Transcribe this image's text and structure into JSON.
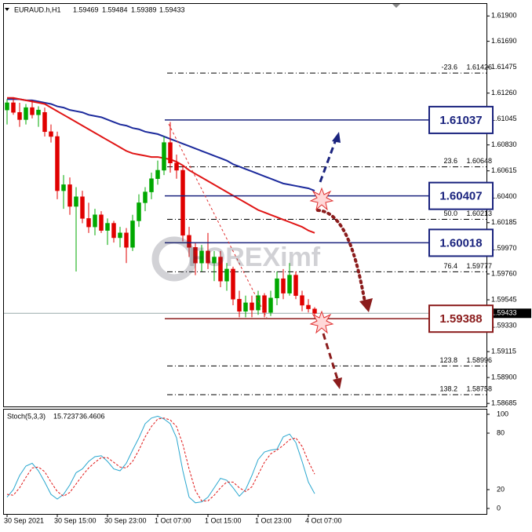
{
  "chart_data": {
    "type": "candlestick",
    "symbol": "EURAUD.h,H1",
    "watermark": "FOREXimf",
    "categories": [
      "30 Sep 2021",
      null,
      null,
      null,
      null,
      null,
      null,
      null,
      "30 Sep 15:00",
      null,
      null,
      null,
      null,
      null,
      null,
      null,
      "30 Sep 23:00",
      null,
      null,
      null,
      null,
      null,
      null,
      null,
      "1 Oct 07:00",
      null,
      null,
      null,
      null,
      null,
      null,
      null,
      "1 Oct 15:00",
      null,
      null,
      null,
      null,
      null,
      null,
      null,
      "1 Oct 23:00",
      null,
      null,
      null,
      null,
      null,
      null,
      null,
      "4 Oct 07:00",
      null
    ],
    "up_color": "#00a800",
    "down_color": "#e00000",
    "candles": [
      [
        1.6112,
        1.6121,
        1.61,
        1.6118
      ],
      [
        1.6118,
        1.6122,
        1.6108,
        1.611
      ],
      [
        1.611,
        1.6118,
        1.6098,
        1.6104
      ],
      [
        1.6104,
        1.6117,
        1.61,
        1.6114
      ],
      [
        1.6114,
        1.612,
        1.6105,
        1.6108
      ],
      [
        1.6108,
        1.6115,
        1.6098,
        1.6112
      ],
      [
        1.611,
        1.6114,
        1.609,
        1.6094
      ],
      [
        1.6094,
        1.61,
        1.6085,
        1.609
      ],
      [
        1.609,
        1.6094,
        1.6038,
        1.6045
      ],
      [
        1.6045,
        1.6058,
        1.603,
        1.605
      ],
      [
        1.605,
        1.6056,
        1.6025,
        1.6032
      ],
      [
        1.6032,
        1.6048,
        1.5978,
        1.604
      ],
      [
        1.604,
        1.6045,
        1.6018,
        1.6022
      ],
      [
        1.6022,
        1.6035,
        1.601,
        1.6015
      ],
      [
        1.6015,
        1.603,
        1.6008,
        1.6025
      ],
      [
        1.6025,
        1.6028,
        1.601,
        1.6012
      ],
      [
        1.6012,
        1.6022,
        1.6,
        1.6018
      ],
      [
        1.6018,
        1.602,
        1.6002,
        1.6006
      ],
      [
        1.6006,
        1.6015,
        1.5998,
        1.601
      ],
      [
        1.601,
        1.6014,
        1.5985,
        1.5998
      ],
      [
        1.5998,
        1.6025,
        1.5995,
        1.602
      ],
      [
        1.602,
        1.6042,
        1.6015,
        1.6035
      ],
      [
        1.6035,
        1.6048,
        1.6028,
        1.6044
      ],
      [
        1.6044,
        1.606,
        1.6038,
        1.6055
      ],
      [
        1.6055,
        1.607,
        1.605,
        1.6062
      ],
      [
        1.6062,
        1.609,
        1.6058,
        1.6085
      ],
      [
        1.6085,
        1.6102,
        1.606,
        1.6068
      ],
      [
        1.6068,
        1.6075,
        1.6055,
        1.6062
      ],
      [
        1.6062,
        1.6066,
        1.6003,
        1.6008
      ],
      [
        1.6008,
        1.6015,
        1.599,
        1.5998
      ],
      [
        1.5998,
        1.6002,
        1.5975,
        1.5985
      ],
      [
        1.5985,
        1.6,
        1.5978,
        1.5995
      ],
      [
        1.5995,
        1.601,
        1.598,
        1.5985
      ],
      [
        1.5985,
        1.5995,
        1.597,
        1.599
      ],
      [
        1.599,
        1.5995,
        1.5965,
        1.597
      ],
      [
        1.597,
        1.5985,
        1.5962,
        1.598
      ],
      [
        1.598,
        1.5982,
        1.595,
        1.5955
      ],
      [
        1.5955,
        1.5962,
        1.594,
        1.5945
      ],
      [
        1.5945,
        1.5958,
        1.594,
        1.5952
      ],
      [
        1.5952,
        1.5958,
        1.594,
        1.5946
      ],
      [
        1.5946,
        1.5962,
        1.5942,
        1.5958
      ],
      [
        1.5958,
        1.596,
        1.594,
        1.5944
      ],
      [
        1.5944,
        1.5962,
        1.5941,
        1.5956
      ],
      [
        1.5956,
        1.5978,
        1.595,
        1.5972
      ],
      [
        1.5972,
        1.598,
        1.5955,
        1.596
      ],
      [
        1.596,
        1.5985,
        1.5958,
        1.5975
      ],
      [
        1.5975,
        1.5978,
        1.5955,
        1.5958
      ],
      [
        1.5958,
        1.5962,
        1.5945,
        1.595
      ],
      [
        1.595,
        1.5955,
        1.5944,
        1.5947
      ],
      [
        1.59469,
        1.59484,
        1.59389,
        1.59433
      ]
    ],
    "ma": [
      {
        "color": "#1c2a9c",
        "values": [
          1.6121,
          1.6121,
          1.6121,
          1.612,
          1.612,
          1.6119,
          1.6118,
          1.6117,
          1.6115,
          1.6114,
          1.6112,
          1.6111,
          1.611,
          1.6108,
          1.6107,
          1.6106,
          1.6104,
          1.6102,
          1.61,
          1.6099,
          1.6097,
          1.6096,
          1.6094,
          1.6093,
          1.6092,
          1.609,
          1.6088,
          1.6086,
          1.6084,
          1.6082,
          1.608,
          1.6078,
          1.6076,
          1.6074,
          1.6072,
          1.607,
          1.6067,
          1.6065,
          1.6063,
          1.6061,
          1.6059,
          1.6057,
          1.6055,
          1.6053,
          1.6051,
          1.605,
          1.6049,
          1.6048,
          1.6047,
          1.6045
        ]
      },
      {
        "color": "#e01515",
        "values": [
          1.6122,
          1.6122,
          1.6121,
          1.612,
          1.6119,
          1.6118,
          1.6117,
          1.6114,
          1.6111,
          1.6108,
          1.6105,
          1.6102,
          1.6099,
          1.6096,
          1.6093,
          1.609,
          1.6087,
          1.6084,
          1.6081,
          1.6078,
          1.6076,
          1.6075,
          1.6074,
          1.6073,
          1.6073,
          1.6072,
          1.6071,
          1.6069,
          1.6066,
          1.6062,
          1.6059,
          1.6056,
          1.6053,
          1.605,
          1.6047,
          1.6044,
          1.6041,
          1.6038,
          1.6035,
          1.6032,
          1.6029,
          1.6027,
          1.6025,
          1.6023,
          1.6021,
          1.6019,
          1.6017,
          1.6015,
          1.6012,
          1.601
        ]
      }
    ],
    "ylim": [
      1.5866,
      1.62
    ],
    "yticks": [
      {
        "value": 1.619,
        "label": "1.61900"
      },
      {
        "value": 1.6169,
        "label": "1.61690"
      },
      {
        "value": 1.61475,
        "label": "1.61475"
      },
      {
        "value": 1.6126,
        "label": "1.61260"
      },
      {
        "value": 1.61045,
        "label": "1.61045"
      },
      {
        "value": 1.6083,
        "label": "1.60830"
      },
      {
        "value": 1.60615,
        "label": "1.60615"
      },
      {
        "value": 1.604,
        "label": "1.60400"
      },
      {
        "value": 1.60185,
        "label": "1.60185"
      },
      {
        "value": 1.5997,
        "label": "1.59970"
      },
      {
        "value": 1.5976,
        "label": "1.59760"
      },
      {
        "value": 1.59545,
        "label": "1.59545"
      },
      {
        "value": 1.5933,
        "label": "1.59330"
      },
      {
        "value": 1.59115,
        "label": "1.59115"
      },
      {
        "value": 1.589,
        "label": "1.58900"
      },
      {
        "value": 1.58685,
        "label": "1.58685"
      }
    ],
    "key_levels": [
      {
        "price": 1.61037,
        "color": "#1a237e"
      },
      {
        "price": 1.60407,
        "color": "#1a237e"
      },
      {
        "price": 1.60018,
        "color": "#1a237e"
      },
      {
        "price": 1.59388,
        "color": "#8b1c1c"
      }
    ],
    "fib_levels": [
      {
        "level": "-23.6",
        "price": 1.61426
      },
      {
        "level": "23.6",
        "price": 1.60648
      },
      {
        "level": "50.0",
        "price": 1.60213
      },
      {
        "level": "76.4",
        "price": 1.59777
      },
      {
        "level": "123.8",
        "price": 1.58996
      },
      {
        "level": "138.2",
        "price": 1.58758
      }
    ],
    "stoch": {
      "name": "Stoch(5,3,3)",
      "ylim": [
        -5,
        105
      ],
      "yticks": [
        0,
        20,
        80,
        100
      ],
      "series": [
        {
          "color": "#2aa7cf",
          "values": [
            12,
            20,
            35,
            45,
            48,
            40,
            28,
            15,
            10,
            15,
            25,
            38,
            42,
            50,
            55,
            56,
            50,
            42,
            40,
            48,
            62,
            75,
            90,
            96,
            98,
            95,
            90,
            75,
            40,
            12,
            6,
            7,
            12,
            22,
            32,
            30,
            22,
            13,
            20,
            35,
            52,
            60,
            62,
            63,
            76,
            79,
            70,
            50,
            28,
            15.7237
          ]
        },
        {
          "color": "#e01515",
          "dashed": true,
          "values": [
            15,
            14,
            22,
            33,
            43,
            44,
            39,
            28,
            18,
            13,
            17,
            26,
            35,
            43,
            49,
            54,
            54,
            49,
            44,
            43,
            50,
            62,
            76,
            87,
            95,
            96,
            94,
            87,
            68,
            42,
            19,
            8,
            8,
            14,
            22,
            28,
            28,
            22,
            18,
            23,
            36,
            49,
            58,
            62,
            67,
            73,
            75,
            66,
            50,
            36.4606
          ]
        }
      ]
    }
  }
}
